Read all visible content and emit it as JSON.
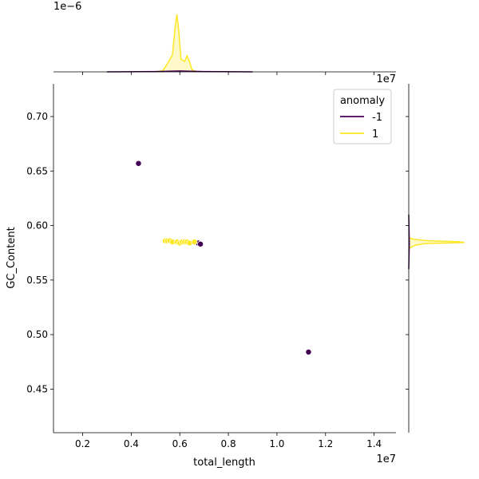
{
  "chart_data": {
    "type": "scatter",
    "title": "",
    "xlabel": "total_length",
    "ylabel": "GC_Content",
    "x_offset_label": "1e7",
    "y_offset_label": "",
    "xlim": [
      800000,
      14900000
    ],
    "ylim": [
      0.41,
      0.73
    ],
    "x_ticks": [
      2000000,
      4000000,
      6000000,
      8000000,
      10000000,
      12000000,
      14000000
    ],
    "x_tick_labels": [
      "0.2",
      "0.4",
      "0.6",
      "0.8",
      "1.0",
      "1.2",
      "1.4"
    ],
    "y_ticks": [
      0.45,
      0.5,
      0.55,
      0.6,
      0.65,
      0.7
    ],
    "y_tick_labels": [
      "0.45",
      "0.50",
      "0.55",
      "0.60",
      "0.65",
      "0.70"
    ],
    "grid": false,
    "legend": {
      "title": "anomaly",
      "placement": "top-right",
      "entries": [
        {
          "label": "-1",
          "color": "#440154"
        },
        {
          "label": "1",
          "color": "#fde725"
        }
      ]
    },
    "series": [
      {
        "name": "-1",
        "color": "#440154",
        "points": [
          {
            "x": 4300000,
            "y": 0.657
          },
          {
            "x": 6750000,
            "y": 0.584
          },
          {
            "x": 6850000,
            "y": 0.583
          },
          {
            "x": 11300000,
            "y": 0.484
          }
        ]
      },
      {
        "name": "1",
        "color": "#fde725",
        "points": [
          {
            "x": 5400000,
            "y": 0.586
          },
          {
            "x": 5500000,
            "y": 0.586
          },
          {
            "x": 5600000,
            "y": 0.586
          },
          {
            "x": 5700000,
            "y": 0.585
          },
          {
            "x": 5900000,
            "y": 0.585
          },
          {
            "x": 6000000,
            "y": 0.584
          },
          {
            "x": 6100000,
            "y": 0.585
          },
          {
            "x": 6200000,
            "y": 0.585
          },
          {
            "x": 6300000,
            "y": 0.585
          },
          {
            "x": 6400000,
            "y": 0.584
          },
          {
            "x": 6600000,
            "y": 0.585
          }
        ]
      }
    ],
    "top_marginal": {
      "type": "kde",
      "offset_label": "1e−6",
      "series": [
        {
          "name": "1",
          "color": "#fde725",
          "x": [
            5000000,
            5300000,
            5500000,
            5700000,
            5800000,
            5880000,
            5950000,
            6050000,
            6200000,
            6300000,
            6400000,
            6500000,
            6700000
          ],
          "density": [
            0,
            0.02,
            0.15,
            0.3,
            0.75,
            1.0,
            0.75,
            0.22,
            0.18,
            0.28,
            0.18,
            0.04,
            0
          ]
        },
        {
          "name": "-1",
          "color": "#440154",
          "x": [
            3000000,
            5000000,
            6000000,
            7000000,
            9000000
          ],
          "density": [
            0,
            0.005,
            0.015,
            0.005,
            0
          ]
        }
      ]
    },
    "right_marginal": {
      "type": "kde",
      "series": [
        {
          "name": "1",
          "color": "#fde725",
          "y": [
            0.579,
            0.582,
            0.5835,
            0.5845,
            0.5852,
            0.586,
            0.5875,
            0.589
          ],
          "density": [
            0,
            0.12,
            0.3,
            1.0,
            0.9,
            0.35,
            0.08,
            0
          ]
        },
        {
          "name": "-1",
          "color": "#440154",
          "y": [
            0.56,
            0.584,
            0.61
          ],
          "density": [
            0,
            0.01,
            0
          ]
        }
      ]
    }
  }
}
